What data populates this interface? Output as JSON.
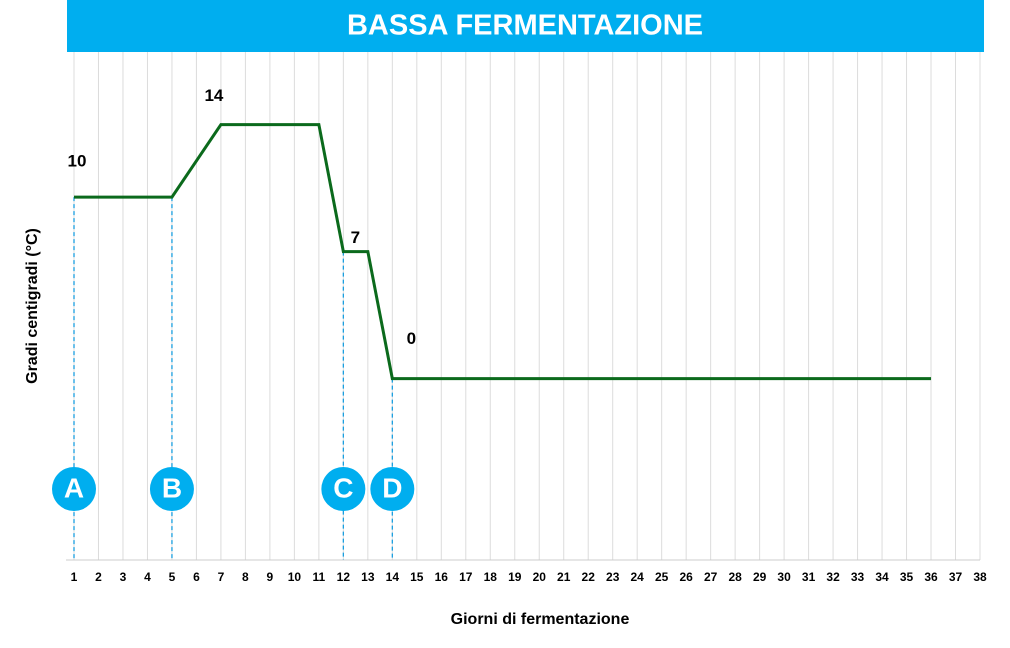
{
  "chart_data": {
    "type": "line",
    "title": "BASSA FERMENTAZIONE",
    "x_label": "Giorni di fermentazione",
    "y_label": "Gradi centigradi (°C)",
    "xlim": [
      1,
      38
    ],
    "xticks": [
      1,
      2,
      3,
      4,
      5,
      6,
      7,
      8,
      9,
      10,
      11,
      12,
      13,
      14,
      15,
      16,
      17,
      18,
      19,
      20,
      21,
      22,
      23,
      24,
      25,
      26,
      27,
      28,
      29,
      30,
      31,
      32,
      33,
      34,
      35,
      36,
      37,
      38
    ],
    "ylim": [
      -10,
      18
    ],
    "grid": true,
    "series": [
      {
        "color": "#0b6a1c",
        "x": [
          1,
          5,
          7,
          11,
          12,
          13,
          14,
          36
        ],
        "values": [
          10,
          10,
          14,
          14,
          7,
          7,
          0,
          0
        ]
      }
    ],
    "markers": [
      {
        "label": "A",
        "x": 1
      },
      {
        "label": "B",
        "x": 5
      },
      {
        "label": "C",
        "x": 12
      },
      {
        "label": "D",
        "x": 14
      }
    ]
  }
}
